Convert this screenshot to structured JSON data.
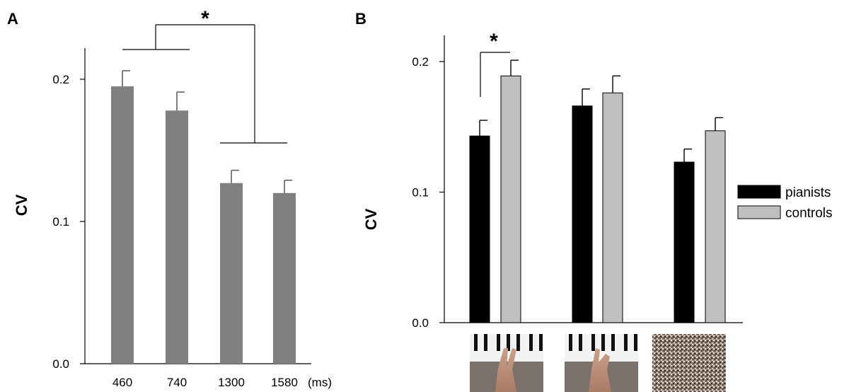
{
  "panels": {
    "a": {
      "label": "A",
      "ylabel": "CV",
      "x_unit": "(ms)",
      "significance": "*"
    },
    "b": {
      "label": "B",
      "ylabel": "CV",
      "significance": "*"
    }
  },
  "stimulus_images": [
    "two-finger-hand-on-piano-image",
    "other-hand-posture-on-piano-image",
    "scrambled-noise-image"
  ],
  "colors": {
    "panel_a_bar": "#808080",
    "pianists": "#000000",
    "controls": "#c0c0c0"
  },
  "chart_data": [
    {
      "type": "bar",
      "panel": "A",
      "categories": [
        "460",
        "740",
        "1300",
        "1580"
      ],
      "values": [
        0.195,
        0.178,
        0.127,
        0.12
      ],
      "errors": [
        0.011,
        0.013,
        0.009,
        0.009
      ],
      "ylabel": "CV",
      "xlabel": "(ms)",
      "ylim": [
        0.0,
        0.22
      ],
      "yticks": [
        "0.0",
        "0.1",
        "0.2"
      ],
      "yticks_values": [
        0.0,
        0.1,
        0.2
      ],
      "significance": [
        {
          "groups": [
            "460",
            "740"
          ],
          "vs": [
            "1300",
            "1580"
          ],
          "label": "*"
        }
      ]
    },
    {
      "type": "bar",
      "panel": "B",
      "categories": [
        "",
        "",
        ""
      ],
      "series": [
        {
          "name": "pianists",
          "values": [
            0.143,
            0.166,
            0.123
          ],
          "errors": [
            0.012,
            0.013,
            0.01
          ]
        },
        {
          "name": "controls",
          "values": [
            0.189,
            0.176,
            0.147
          ],
          "errors": [
            0.012,
            0.013,
            0.01
          ]
        }
      ],
      "ylabel": "CV",
      "ylim": [
        0.0,
        0.21
      ],
      "yticks": [
        "0.0",
        "0.1",
        "0.2"
      ],
      "yticks_values": [
        0.0,
        0.1,
        0.2
      ],
      "legend": "right",
      "significance": [
        {
          "category_index": 0,
          "label": "*"
        }
      ]
    }
  ]
}
